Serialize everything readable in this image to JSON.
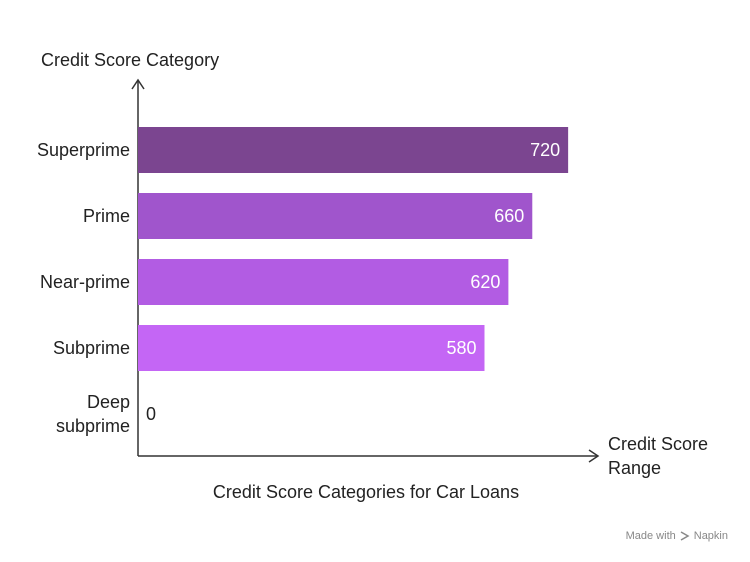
{
  "chart_data": {
    "type": "bar",
    "orientation": "horizontal",
    "y_axis_title": "Credit Score Category",
    "x_axis_title": "Credit Score Range",
    "caption": "Credit Score Categories for Car Loans",
    "categories": [
      "Superprime",
      "Prime",
      "Near-prime",
      "Subprime",
      "Deep subprime"
    ],
    "values": [
      720,
      660,
      620,
      580,
      0
    ],
    "colors": [
      "#7b4590",
      "#a055cc",
      "#b25ce3",
      "#c466f5",
      "#d07af8"
    ],
    "xlim": [
      0,
      770
    ],
    "grid": false
  },
  "footer": {
    "prefix": "Made with",
    "brand": "Napkin"
  }
}
